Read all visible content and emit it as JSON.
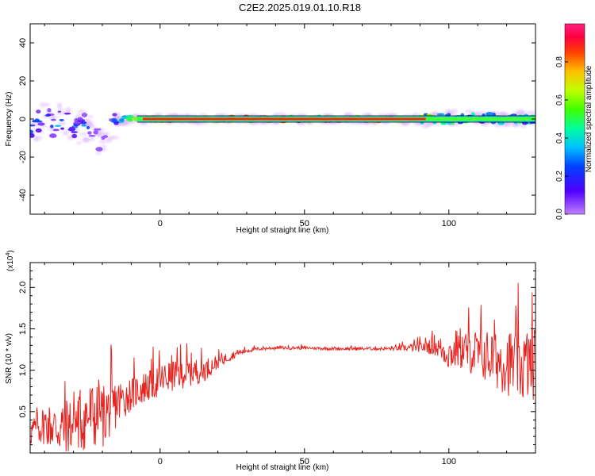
{
  "title": "C2E2.2025.019.01.10.R18",
  "chart_data": [
    {
      "type": "heatmap",
      "title": "C2E2.2025.019.01.10.R18",
      "xlabel": "Height of straight line (km)",
      "ylabel": "Frequency (Hz)",
      "xlim": [
        -45,
        130
      ],
      "ylim": [
        -50,
        50
      ],
      "xticks": [
        "0",
        "50",
        "100"
      ],
      "xtick_values": [
        0,
        50,
        100
      ],
      "yticks": [
        "40",
        "20",
        "0",
        "-20",
        "-40"
      ],
      "ytick_values": [
        40,
        20,
        0,
        -20,
        -40
      ],
      "colorbar": {
        "label": "Normalized spectral amplitude",
        "range": [
          0,
          1
        ],
        "ticks": [
          "0.0",
          "0.2",
          "0.4",
          "0.6",
          "0.8"
        ],
        "tick_values": [
          0,
          0.2,
          0.4,
          0.6,
          0.8
        ],
        "colormap": "rainbow (violet to magenta)"
      },
      "description_points": [
        {
          "x": -43,
          "y": -3,
          "amp": 0.35
        },
        {
          "x": -40,
          "y": 2,
          "amp": 0.3
        },
        {
          "x": -37,
          "y": -4,
          "amp": 0.4
        },
        {
          "x": -34,
          "y": 1,
          "amp": 0.45
        },
        {
          "x": -31,
          "y": -3,
          "amp": 0.35
        },
        {
          "x": -28,
          "y": -6,
          "amp": 0.3
        },
        {
          "x": -25,
          "y": -2,
          "amp": 0.4
        },
        {
          "x": -22,
          "y": -10,
          "amp": 0.2
        },
        {
          "x": -19,
          "y": -14,
          "amp": 0.15
        },
        {
          "x": -16,
          "y": -1,
          "amp": 0.35
        },
        {
          "x": -12,
          "y": 0,
          "amp": 0.5
        },
        {
          "x": -9,
          "y": 0,
          "amp": 0.6
        },
        {
          "x": -6,
          "y": 0,
          "amp": 0.85
        },
        {
          "x": 0,
          "y": 0,
          "amp": 0.85
        },
        {
          "x": 10,
          "y": 0,
          "amp": 0.9
        },
        {
          "x": 25,
          "y": 0,
          "amp": 0.95
        },
        {
          "x": 50,
          "y": 0,
          "amp": 1.0
        },
        {
          "x": 75,
          "y": 0,
          "amp": 0.95
        },
        {
          "x": 90,
          "y": 0,
          "amp": 0.8
        },
        {
          "x": 100,
          "y": 0,
          "amp": 0.6
        },
        {
          "x": 110,
          "y": 1,
          "amp": 0.5
        },
        {
          "x": 120,
          "y": 0,
          "amp": 0.5
        },
        {
          "x": 128,
          "y": 0,
          "amp": 0.55
        }
      ]
    },
    {
      "type": "line",
      "xlabel": "Height of straight line (km)",
      "ylabel": "SNR (10 * v/v)",
      "scale_note": "(x10",
      "scale_exp": "4",
      "scale_close": ")",
      "xlim": [
        -45,
        130
      ],
      "ylim": [
        0.0,
        2.3
      ],
      "xticks": [
        "0",
        "50",
        "100"
      ],
      "xtick_values": [
        0,
        50,
        100
      ],
      "yticks": [
        "0.5",
        "1.0",
        "1.5",
        "2.0"
      ],
      "ytick_values": [
        0.5,
        1.0,
        1.5,
        2.0
      ],
      "color": "#e8231f",
      "series": [
        {
          "x": [
            -45,
            -40,
            -35,
            -30,
            -25,
            -20,
            -15,
            -10,
            -5,
            0,
            5,
            10,
            15,
            20,
            25,
            30,
            35,
            40,
            50,
            60,
            70,
            80,
            85,
            90,
            95,
            100,
            105,
            110,
            115,
            120,
            125,
            130
          ],
          "values": [
            0.25,
            0.35,
            0.3,
            0.35,
            0.45,
            0.45,
            0.6,
            0.72,
            0.8,
            0.88,
            0.95,
            0.98,
            1.0,
            1.1,
            1.18,
            1.24,
            1.26,
            1.27,
            1.27,
            1.26,
            1.26,
            1.26,
            1.27,
            1.28,
            1.3,
            1.2,
            1.25,
            1.2,
            1.15,
            1.1,
            1.05,
            1.1
          ],
          "noise": [
            0.18,
            0.25,
            0.35,
            0.4,
            0.45,
            0.4,
            0.3,
            0.2,
            0.2,
            0.2,
            0.2,
            0.18,
            0.15,
            0.08,
            0.05,
            0.03,
            0.02,
            0.02,
            0.02,
            0.02,
            0.02,
            0.02,
            0.04,
            0.06,
            0.12,
            0.2,
            0.25,
            0.3,
            0.35,
            0.4,
            0.45,
            0.45
          ]
        }
      ]
    }
  ]
}
